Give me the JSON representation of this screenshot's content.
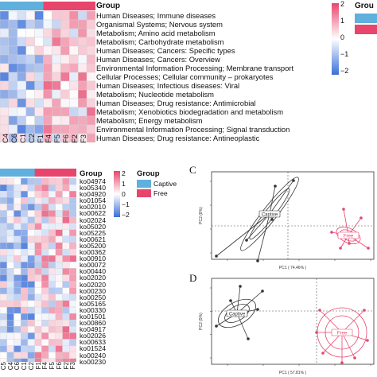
{
  "colors": {
    "captive": "#5fb0dc",
    "free": "#e8456d",
    "heat_low": "#3a6fd8",
    "heat_mid": "#ffffff",
    "heat_high": "#e8456d",
    "ellipse_captive": "#333333",
    "ellipse_free": "#e8456d"
  },
  "panel_top": {
    "group_label": "Group",
    "legend_group_title": "Grou",
    "colorbar_ticks": [
      "2",
      "1",
      "0",
      "−1",
      "−2"
    ],
    "columns": [
      "C5",
      "C4",
      "C6",
      "C1",
      "C2",
      "F1",
      "F4",
      "F5",
      "F6",
      "F2",
      "F3"
    ],
    "rows": [
      "Human Diseases; Immune diseases",
      "Organismal Systems; Nervous system",
      "Metabolism; Amino acid metabolism",
      "Metabolism; Carbohydrate metabolism",
      "Human Diseases; Cancers: Specific types",
      "Human Diseases; Cancers: Overview",
      "Environmental Information Processing; Membrane transport",
      "Cellular Processes; Cellular community – prokaryotes",
      "Human Diseases; Infectious diseases: Viral",
      "Metabolism; Nucleotide metabolism",
      "Human Diseases; Drug resistance: Antimicrobial",
      "Metabolism; Xenobiotics biodegradation and metabolism",
      "Metabolism; Energy metabolism",
      "Environmental Information Processing; Signal transduction",
      "Human Diseases; Drug resistance: Antineoplastic"
    ]
  },
  "panel_bottom": {
    "group_label": "Group",
    "colorbar_ticks": [
      "2",
      "1",
      "0",
      "−1",
      "−2"
    ],
    "legend_title": "Group",
    "legend_items": [
      {
        "label": "Captive",
        "color": "#5fb0dc"
      },
      {
        "label": "Free",
        "color": "#e8456d"
      }
    ],
    "columns": [
      "C5",
      "C4",
      "C6",
      "C1",
      "C2",
      "F1",
      "F4",
      "F5",
      "F6",
      "F2",
      "F3"
    ],
    "rows": [
      "ko04974",
      "ko05340",
      "ko04920",
      "ko01054",
      "ko02010",
      "ko00622",
      "ko02024",
      "ko05020",
      "ko05225",
      "ko00621",
      "ko05200",
      "ko00362",
      "ko00910",
      "ko00072",
      "ko00440",
      "ko02020",
      "ko02020",
      "ko00230",
      "ko00250",
      "ko05165",
      "ko00330",
      "ko01501",
      "ko00860",
      "ko04917",
      "ko02026",
      "ko00633",
      "ko01524",
      "ko00240",
      "ko00230"
    ]
  },
  "panel_c": {
    "label": "C",
    "xlabel": "PC1 ( 74.46% )",
    "ylabel": "PC2 (8%)",
    "group_captive": "Captive",
    "group_free": "Free"
  },
  "panel_d": {
    "label": "D",
    "xlabel": "PC1 ( 57.81% )",
    "ylabel": "PC2 (9%)",
    "group_captive": "Captive",
    "group_free": "Free"
  }
}
